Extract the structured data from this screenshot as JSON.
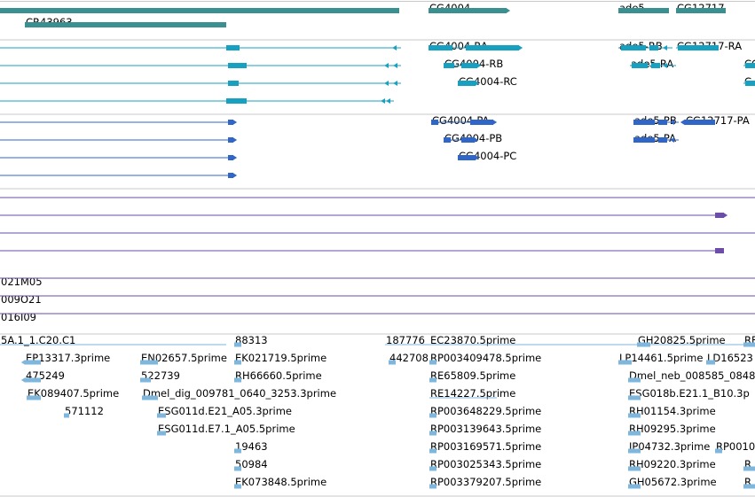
{
  "colors": {
    "gene": "#3a9090",
    "transcript": "#17a0c0",
    "protein": "#2f66c8",
    "mirna": "#6a4ea8",
    "est": "#7eb6dc",
    "separator": "#c8c8c8"
  },
  "tracks": [
    {
      "id": "gene",
      "row_height": 16,
      "offset": 9,
      "color_key": "gene",
      "features": [
        {
          "label": "",
          "row": 0,
          "start": 0,
          "end": 450,
          "strand": 0,
          "mark": "bar"
        },
        {
          "label": "CR43963",
          "row": 1,
          "start": 28,
          "end": 255,
          "strand": 0,
          "mark": "bar"
        },
        {
          "label": "CG4004",
          "row": 0,
          "start": 483,
          "end": 575,
          "strand": 1,
          "mark": "bar"
        },
        {
          "label": "ade5",
          "row": 0,
          "start": 697,
          "end": 758,
          "strand": -1,
          "mark": "bar"
        },
        {
          "label": "CG12717",
          "row": 0,
          "start": 762,
          "end": 822,
          "strand": -1,
          "mark": "bar"
        }
      ]
    },
    {
      "id": "transcript",
      "row_height": 20,
      "offset": 8,
      "color_key": "transcript",
      "features": [
        {
          "label": "",
          "row": 0,
          "start": 0,
          "end": 452,
          "strand": -1,
          "mark": "thin",
          "blocks": [
            {
              "s": 255,
              "e": 270
            }
          ],
          "arrows": [
            447
          ]
        },
        {
          "label": "",
          "row": 1,
          "start": 0,
          "end": 452,
          "strand": -1,
          "mark": "thin",
          "blocks": [
            {
              "s": 257,
              "e": 278
            }
          ],
          "arrows": [
            438,
            448
          ]
        },
        {
          "label": "",
          "row": 2,
          "start": 0,
          "end": 452,
          "strand": -1,
          "mark": "thin",
          "blocks": [
            {
              "s": 257,
              "e": 269
            }
          ],
          "arrows": [
            438,
            448
          ]
        },
        {
          "label": "",
          "row": 3,
          "start": 0,
          "end": 444,
          "strand": -1,
          "mark": "thin",
          "blocks": [
            {
              "s": 255,
              "e": 278
            }
          ],
          "arrows": [
            434,
            440
          ]
        },
        {
          "label": "CG4004-RA",
          "row": 0,
          "start": 483,
          "end": 585,
          "strand": 1,
          "mark": "thin",
          "blocks": [
            {
              "s": 483,
              "e": 510
            },
            {
              "s": 525,
              "e": 585
            }
          ],
          "arrows": []
        },
        {
          "label": "CG4004-RB",
          "row": 1,
          "start": 500,
          "end": 538,
          "strand": 1,
          "mark": "thin",
          "blocks": [
            {
              "s": 500,
              "e": 512
            },
            {
              "s": 520,
              "e": 538
            }
          ],
          "arrows": []
        },
        {
          "label": "CG4004-RC",
          "row": 2,
          "start": 516,
          "end": 536,
          "strand": 1,
          "mark": "thin",
          "blocks": [
            {
              "s": 516,
              "e": 536
            }
          ],
          "arrows": []
        },
        {
          "label": "ade5-RB",
          "row": 0,
          "start": 697,
          "end": 758,
          "strand": -1,
          "mark": "thin",
          "blocks": [
            {
              "s": 700,
              "e": 728
            },
            {
              "s": 732,
              "e": 742
            }
          ],
          "arrows": [
            752
          ]
        },
        {
          "label": "ade5-RA",
          "row": 1,
          "start": 710,
          "end": 762,
          "strand": -1,
          "mark": "thin",
          "blocks": [
            {
              "s": 712,
              "e": 730
            },
            {
              "s": 734,
              "e": 744
            }
          ],
          "arrows": [
            752
          ]
        },
        {
          "label": "CG12717-RA",
          "row": 0,
          "start": 762,
          "end": 810,
          "strand": -1,
          "mark": "thin",
          "blocks": [
            {
              "s": 764,
              "e": 810
            }
          ],
          "arrows": []
        },
        {
          "label": "CG",
          "row": 1,
          "start": 838,
          "end": 851,
          "strand": -1,
          "mark": "thin",
          "blocks": [
            {
              "s": 840,
              "e": 851
            }
          ],
          "arrows": []
        },
        {
          "label": "C",
          "row": 2,
          "start": 838,
          "end": 851,
          "strand": -1,
          "mark": "thin",
          "blocks": [
            {
              "s": 840,
              "e": 851
            }
          ],
          "arrows": []
        }
      ]
    },
    {
      "id": "protein",
      "row_height": 20,
      "offset": 8,
      "color_key": "protein",
      "features": [
        {
          "label": "",
          "row": 0,
          "start": 0,
          "end": 263,
          "strand": 1,
          "mark": "thin",
          "blocks": [
            {
              "s": 257,
              "e": 263
            }
          ],
          "arrows": []
        },
        {
          "label": "",
          "row": 1,
          "start": 0,
          "end": 263,
          "strand": 1,
          "mark": "thin",
          "blocks": [
            {
              "s": 257,
              "e": 263
            }
          ],
          "arrows": []
        },
        {
          "label": "",
          "row": 2,
          "start": 0,
          "end": 263,
          "strand": 1,
          "mark": "thin",
          "blocks": [
            {
              "s": 257,
              "e": 263
            }
          ],
          "arrows": []
        },
        {
          "label": "",
          "row": 3,
          "start": 0,
          "end": 263,
          "strand": 1,
          "mark": "thin",
          "blocks": [
            {
              "s": 257,
              "e": 263
            }
          ],
          "arrows": []
        },
        {
          "label": "CG4004-PA",
          "row": 0,
          "start": 486,
          "end": 556,
          "strand": 1,
          "mark": "thin",
          "blocks": [
            {
              "s": 486,
              "e": 494
            },
            {
              "s": 530,
              "e": 556
            }
          ],
          "arrows": []
        },
        {
          "label": "CG4004-PB",
          "row": 1,
          "start": 500,
          "end": 535,
          "strand": 1,
          "mark": "thin",
          "blocks": [
            {
              "s": 500,
              "e": 508
            },
            {
              "s": 520,
              "e": 535
            }
          ],
          "arrows": []
        },
        {
          "label": "CG4004-PC",
          "row": 2,
          "start": 516,
          "end": 536,
          "strand": 1,
          "mark": "thin",
          "blocks": [
            {
              "s": 516,
              "e": 536
            }
          ],
          "arrows": []
        },
        {
          "label": "ade5-PB",
          "row": 0,
          "start": 714,
          "end": 765,
          "strand": -1,
          "mark": "thin",
          "blocks": [
            {
              "s": 714,
              "e": 738
            },
            {
              "s": 742,
              "e": 752
            }
          ],
          "arrows": [
            760
          ]
        },
        {
          "label": "ade5-PA",
          "row": 1,
          "start": 714,
          "end": 765,
          "strand": -1,
          "mark": "thin",
          "blocks": [
            {
              "s": 714,
              "e": 738
            },
            {
              "s": 742,
              "e": 752
            }
          ],
          "arrows": [
            760
          ]
        },
        {
          "label": "CG12717-PA",
          "row": 0,
          "start": 772,
          "end": 806,
          "strand": -1,
          "mark": "thin",
          "blocks": [
            {
              "s": 772,
              "e": 806
            }
          ],
          "arrows": []
        }
      ]
    },
    {
      "id": "mirna",
      "row_height": 20,
      "offset": 9,
      "color_key": "mirna",
      "features": [
        {
          "label": "",
          "row": 0,
          "start": 0,
          "end": 851,
          "strand": 0,
          "mark": "line"
        },
        {
          "label": "",
          "row": 1,
          "start": 0,
          "end": 816,
          "strand": 1,
          "mark": "line",
          "blocks": [
            {
              "s": 806,
              "e": 816
            }
          ],
          "arrows": []
        },
        {
          "label": "",
          "row": 2,
          "start": 0,
          "end": 851,
          "strand": 0,
          "mark": "line"
        },
        {
          "label": "",
          "row": 3,
          "start": 0,
          "end": 816,
          "strand": 0,
          "mark": "line",
          "blocks": [
            {
              "s": 806,
              "e": 816
            }
          ],
          "arrows": []
        }
      ]
    },
    {
      "id": "clone",
      "row_height": 20,
      "offset": 2,
      "color_key": "mirna",
      "features": [
        {
          "label": "021M05",
          "row": 0,
          "start": 0,
          "end": 851,
          "strand": 0,
          "mark": "line"
        },
        {
          "label": "009O21",
          "row": 1,
          "start": 0,
          "end": 851,
          "strand": 0,
          "mark": "line"
        },
        {
          "label": "016I09",
          "row": 2,
          "start": 0,
          "end": 851,
          "strand": 0,
          "mark": "line"
        }
      ]
    },
    {
      "id": "est",
      "row_height": 20,
      "offset": 11,
      "color_key": "est",
      "features": [
        {
          "label": "5A.1_1.C20.C1",
          "row": 0,
          "start": 0,
          "end": 255,
          "strand": 0,
          "mark": "line"
        },
        {
          "label": "88313",
          "row": 0,
          "start": 264,
          "end": 272,
          "strand": 0,
          "mark": "block"
        },
        {
          "label": "187776",
          "row": 0,
          "start": 434,
          "end": 484,
          "strand": 0,
          "mark": "line"
        },
        {
          "label": "EC23870.5prime",
          "row": 0,
          "start": 484,
          "end": 851,
          "strand": 0,
          "mark": "line"
        },
        {
          "label": "GH20825.5prime",
          "row": 0,
          "start": 718,
          "end": 733,
          "strand": 0,
          "mark": "block"
        },
        {
          "label": "RE",
          "row": 0,
          "start": 838,
          "end": 851,
          "strand": 0,
          "mark": "block"
        },
        {
          "label": "EP13317.3prime",
          "row": 1,
          "start": 28,
          "end": 46,
          "strand": -1,
          "mark": "block"
        },
        {
          "label": "EN02657.5prime",
          "row": 1,
          "start": 158,
          "end": 178,
          "strand": 0,
          "mark": "block"
        },
        {
          "label": "EK021719.5prime",
          "row": 1,
          "start": 264,
          "end": 272,
          "strand": 0,
          "mark": "block"
        },
        {
          "label": "442708",
          "row": 1,
          "start": 438,
          "end": 446,
          "strand": 0,
          "mark": "block"
        },
        {
          "label": "RP003409478.5prime",
          "row": 1,
          "start": 484,
          "end": 492,
          "strand": 0,
          "mark": "block"
        },
        {
          "label": "LP14461.5prime",
          "row": 1,
          "start": 697,
          "end": 712,
          "strand": 0,
          "mark": "block"
        },
        {
          "label": "LD16523",
          "row": 1,
          "start": 796,
          "end": 806,
          "strand": 0,
          "mark": "block"
        },
        {
          "label": "475249",
          "row": 2,
          "start": 28,
          "end": 46,
          "strand": -1,
          "mark": "block"
        },
        {
          "label": "522739",
          "row": 2,
          "start": 158,
          "end": 170,
          "strand": 0,
          "mark": "block"
        },
        {
          "label": "RH66660.5prime",
          "row": 2,
          "start": 264,
          "end": 272,
          "strand": 0,
          "mark": "block"
        },
        {
          "label": "RE65809.5prime",
          "row": 2,
          "start": 484,
          "end": 492,
          "strand": 0,
          "mark": "block"
        },
        {
          "label": "Dmel_neb_008585_0848",
          "row": 2,
          "start": 708,
          "end": 722,
          "strand": 0,
          "mark": "block"
        },
        {
          "label": "EK089407.5prime",
          "row": 3,
          "start": 30,
          "end": 46,
          "strand": 0,
          "mark": "block"
        },
        {
          "label": "Dmel_dig_009781_0640_3253.3prime",
          "row": 3,
          "start": 160,
          "end": 178,
          "strand": 0,
          "mark": "block"
        },
        {
          "label": "RE14227.5prime",
          "row": 3,
          "start": 484,
          "end": 560,
          "strand": 0,
          "mark": "line"
        },
        {
          "label": "ESG018b.E21.1_B10.3p",
          "row": 3,
          "start": 708,
          "end": 722,
          "strand": 0,
          "mark": "block"
        },
        {
          "label": "571112",
          "row": 4,
          "start": 72,
          "end": 78,
          "strand": 0,
          "mark": "block"
        },
        {
          "label": "ESG011d.E21_A05.3prime",
          "row": 4,
          "start": 177,
          "end": 187,
          "strand": 0,
          "mark": "block"
        },
        {
          "label": "RP003648229.5prime",
          "row": 4,
          "start": 484,
          "end": 492,
          "strand": 0,
          "mark": "block"
        },
        {
          "label": "RH01154.3prime",
          "row": 4,
          "start": 708,
          "end": 722,
          "strand": 0,
          "mark": "block"
        },
        {
          "label": "ESG011d.E7.1_A05.5prime",
          "row": 5,
          "start": 177,
          "end": 187,
          "strand": 0,
          "mark": "block"
        },
        {
          "label": "RP003139643.5prime",
          "row": 5,
          "start": 484,
          "end": 492,
          "strand": 0,
          "mark": "block"
        },
        {
          "label": "RH09295.3prime",
          "row": 5,
          "start": 708,
          "end": 722,
          "strand": 0,
          "mark": "block"
        },
        {
          "label": "19463",
          "row": 6,
          "start": 264,
          "end": 272,
          "strand": 0,
          "mark": "block"
        },
        {
          "label": "RP003169571.5prime",
          "row": 6,
          "start": 484,
          "end": 492,
          "strand": 0,
          "mark": "block"
        },
        {
          "label": "IP04732.3prime",
          "row": 6,
          "start": 708,
          "end": 722,
          "strand": 0,
          "mark": "block"
        },
        {
          "label": "RP0010",
          "row": 6,
          "start": 806,
          "end": 814,
          "strand": 0,
          "mark": "block"
        },
        {
          "label": "50984",
          "row": 7,
          "start": 264,
          "end": 272,
          "strand": 0,
          "mark": "block"
        },
        {
          "label": "RP003025343.5prime",
          "row": 7,
          "start": 484,
          "end": 492,
          "strand": 0,
          "mark": "block"
        },
        {
          "label": "RH09220.3prime",
          "row": 7,
          "start": 708,
          "end": 722,
          "strand": 0,
          "mark": "block"
        },
        {
          "label": "R",
          "row": 7,
          "start": 838,
          "end": 851,
          "strand": 0,
          "mark": "block"
        },
        {
          "label": "EK073848.5prime",
          "row": 8,
          "start": 264,
          "end": 272,
          "strand": 0,
          "mark": "block"
        },
        {
          "label": "RP003379207.5prime",
          "row": 8,
          "start": 484,
          "end": 492,
          "strand": 0,
          "mark": "block"
        },
        {
          "label": "GH05672.3prime",
          "row": 8,
          "start": 708,
          "end": 722,
          "strand": 0,
          "mark": "block"
        },
        {
          "label": "R",
          "row": 8,
          "start": 838,
          "end": 851,
          "strand": 0,
          "mark": "block"
        }
      ]
    }
  ]
}
